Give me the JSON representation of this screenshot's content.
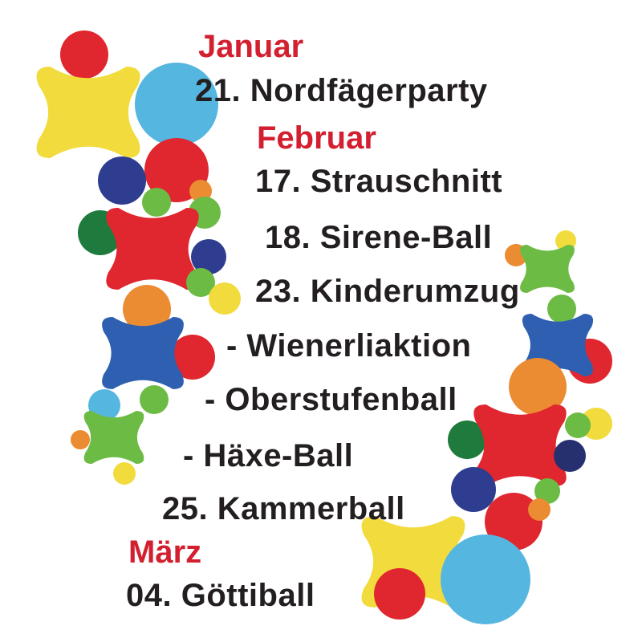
{
  "colors": {
    "month_text": "#d32030",
    "event_text": "#231f20",
    "red": "#e0262e",
    "yellow": "#f2db3c",
    "light_blue": "#55b6e0",
    "dark_blue": "#2e3d8f",
    "medium_blue": "#2f5fb0",
    "green": "#6cbb45",
    "dark_green": "#1f7a3e",
    "orange": "#eb8b32",
    "navy": "#27306e"
  },
  "months": {
    "january": "Januar",
    "february": "Februar",
    "march": "März"
  },
  "events": {
    "e1": "21. Nordfägerparty",
    "e2": "17. Strauschnitt",
    "e3": "18. Sirene-Ball",
    "e4": "23. Kinderumzug",
    "e5": "- Wienerliaktion",
    "e6": "- Oberstufenball",
    "e7": "- Häxe-Ball",
    "e8": "25. Kammerball",
    "e9": "04. Göttiball"
  }
}
